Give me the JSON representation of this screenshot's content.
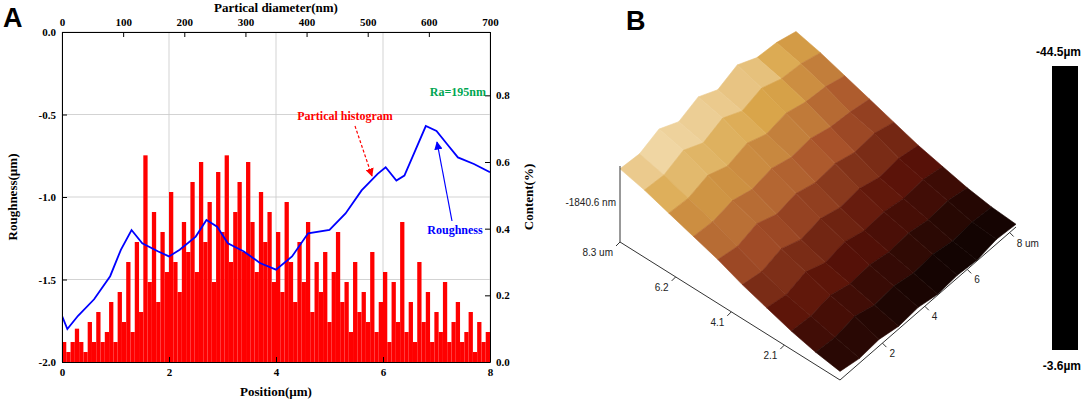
{
  "chart_data": [
    {
      "type": "combo",
      "panel_label": "A",
      "xlabel": "Position(µm)",
      "xlim": [
        0,
        8
      ],
      "xticks": [
        0,
        2,
        4,
        6,
        8
      ],
      "x2label": "Partical diameter(nm)",
      "x2lim": [
        0,
        700
      ],
      "x2ticks": [
        0,
        100,
        200,
        300,
        400,
        500,
        600,
        700
      ],
      "ylabel": "Roughness(µm)",
      "ylim": [
        -2,
        0
      ],
      "yticks": [
        {
          "value": -2,
          "label": "-2.0"
        },
        -1.5,
        {
          "value": -1,
          "label": "-1.0"
        },
        -0.5,
        {
          "value": 0,
          "label": "0.0"
        }
      ],
      "y2label": "Content(%)",
      "y2lim": [
        0,
        0.99
      ],
      "y2ticks": [
        {
          "value": 0,
          "label": "0.0"
        },
        0.2,
        0.4,
        0.6,
        0.8
      ],
      "grid": true,
      "annotations": [
        {
          "text": "Partical histogram",
          "color": "#ff0000"
        },
        {
          "text": "Roughness",
          "color": "#0000ff"
        },
        {
          "text": "Ra=195nm",
          "color": "#00a651"
        }
      ],
      "series": [
        {
          "type": "histogram",
          "axis": "y2",
          "color": "#ff0000",
          "bins": [
            0,
            7,
            14,
            21,
            28,
            35,
            42,
            49,
            56,
            63,
            70,
            77,
            84,
            91,
            98,
            105,
            112,
            119,
            126,
            133,
            140,
            147,
            154,
            161,
            168,
            175,
            182,
            189,
            196,
            203,
            210,
            217,
            224,
            231,
            238,
            245,
            252,
            259,
            266,
            273,
            280,
            287,
            294,
            301,
            308,
            315,
            322,
            329,
            336,
            343,
            350,
            357,
            364,
            371,
            378,
            385,
            392,
            399,
            406,
            413,
            420,
            427,
            434,
            441,
            448,
            455,
            462,
            469,
            476,
            483,
            490,
            497,
            504,
            511,
            518,
            525,
            532,
            539,
            546,
            553,
            560,
            567,
            574,
            581,
            588,
            595,
            602,
            609,
            616,
            623,
            630,
            637,
            644,
            651,
            658,
            665,
            672,
            679,
            686,
            693,
            700
          ],
          "values": [
            0.06,
            0.03,
            0.06,
            0.1,
            0.06,
            0.03,
            0.12,
            0.06,
            0.15,
            0.06,
            0.09,
            0.18,
            0.06,
            0.21,
            0.12,
            0.3,
            0.09,
            0.36,
            0.15,
            0.62,
            0.24,
            0.45,
            0.18,
            0.39,
            0.27,
            0.51,
            0.3,
            0.21,
            0.42,
            0.33,
            0.54,
            0.27,
            0.6,
            0.36,
            0.48,
            0.24,
            0.57,
            0.39,
            0.62,
            0.3,
            0.45,
            0.54,
            0.33,
            0.6,
            0.42,
            0.27,
            0.51,
            0.36,
            0.45,
            0.24,
            0.39,
            0.21,
            0.48,
            0.3,
            0.18,
            0.36,
            0.24,
            0.42,
            0.15,
            0.3,
            0.21,
            0.33,
            0.12,
            0.27,
            0.39,
            0.18,
            0.24,
            0.09,
            0.3,
            0.15,
            0.21,
            0.12,
            0.33,
            0.09,
            0.18,
            0.27,
            0.06,
            0.24,
            0.12,
            0.42,
            0.09,
            0.18,
            0.06,
            0.3,
            0.12,
            0.21,
            0.06,
            0.15,
            0.09,
            0.24,
            0.06,
            0.12,
            0.18,
            0.06,
            0.09,
            0.15,
            0.03,
            0.12,
            0.06,
            0.09
          ]
        },
        {
          "type": "line",
          "color": "#0000ff",
          "x": [
            0,
            0.1,
            0.3,
            0.6,
            0.9,
            1.1,
            1.3,
            1.5,
            1.8,
            2.0,
            2.2,
            2.5,
            2.7,
            2.9,
            3.1,
            3.4,
            3.7,
            4.0,
            4.3,
            4.6,
            5.0,
            5.3,
            5.6,
            5.9,
            6.05,
            6.25,
            6.4,
            6.6,
            6.8,
            7.0,
            7.2,
            7.4,
            7.7,
            8.0
          ],
          "values": [
            -1.72,
            -1.8,
            -1.72,
            -1.62,
            -1.48,
            -1.32,
            -1.2,
            -1.28,
            -1.33,
            -1.36,
            -1.32,
            -1.24,
            -1.14,
            -1.18,
            -1.28,
            -1.33,
            -1.4,
            -1.44,
            -1.36,
            -1.22,
            -1.2,
            -1.1,
            -0.96,
            -0.86,
            -0.82,
            -0.9,
            -0.87,
            -0.72,
            -0.57,
            -0.6,
            -0.68,
            -0.76,
            -0.8,
            -0.85
          ]
        }
      ]
    },
    {
      "type": "surface",
      "panel_label": "B",
      "x": [
        0,
        0.92,
        1.84,
        2.77,
        3.69,
        4.61,
        5.53,
        6.46,
        7.38,
        8.3
      ],
      "y": [
        0,
        0.92,
        1.84,
        2.77,
        3.69,
        4.61,
        5.53,
        6.46,
        7.38,
        8.3
      ],
      "xlim": [
        0,
        8.3
      ],
      "xticks": [
        2,
        4,
        6,
        {
          "value": 8,
          "label": "8 um"
        }
      ],
      "ylim": [
        0,
        8.3
      ],
      "yticks": [
        2.1,
        4.1,
        6.2,
        {
          "value": 8.3,
          "label": "8.3 um"
        }
      ],
      "z_label": "-1840.6 nm",
      "z": [
        [
          -8,
          -6,
          -7,
          -5,
          -6,
          -4,
          -5,
          -4,
          -6,
          -5
        ],
        [
          -10,
          -9,
          -11,
          -8,
          -9,
          -7,
          -8,
          -6,
          -7,
          -6
        ],
        [
          -13,
          -12,
          -14,
          -11,
          -12,
          -10,
          -11,
          -9,
          -10,
          -8
        ],
        [
          -17,
          -15,
          -18,
          -14,
          -16,
          -13,
          -14,
          -12,
          -13,
          -11
        ],
        [
          -21,
          -19,
          -22,
          -18,
          -20,
          -17,
          -18,
          -15,
          -16,
          -14
        ],
        [
          -26,
          -24,
          -27,
          -23,
          -25,
          -22,
          -23,
          -20,
          -21,
          -18
        ],
        [
          -30,
          -29,
          -31,
          -28,
          -30,
          -27,
          -28,
          -25,
          -24,
          -22
        ],
        [
          -34,
          -33,
          -36,
          -32,
          -35,
          -31,
          -33,
          -30,
          -29,
          -26
        ],
        [
          -38,
          -37,
          -41,
          -36,
          -40,
          -35,
          -38,
          -34,
          -33,
          -30
        ],
        [
          -41,
          -40,
          -44,
          -39,
          -43,
          -38,
          -42,
          -37,
          -36,
          -33
        ]
      ],
      "colorbar": {
        "range": [
          -44.5,
          -3.6
        ],
        "ticks": [
          {
            "value": -44.5,
            "label": "-44.5µm"
          },
          {
            "value": -3.6,
            "label": "-3.6µm"
          }
        ]
      }
    }
  ]
}
